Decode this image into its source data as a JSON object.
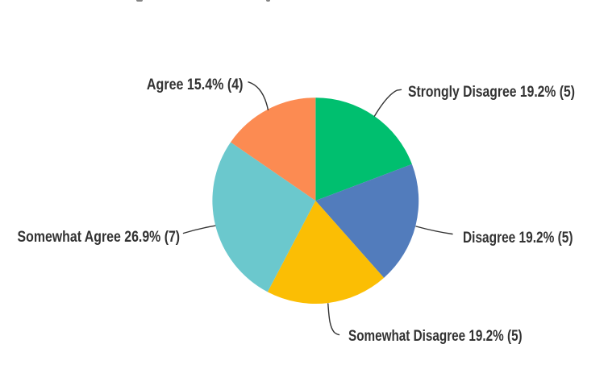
{
  "chart_data": {
    "type": "pie",
    "title": "",
    "total_responses": 26,
    "start_angle_deg": 0,
    "direction": "clockwise",
    "legend_position": "outside-labels-with-leader-lines",
    "label_color": "#333333",
    "leader_line_color": "#333333",
    "background_color": "#ffffff",
    "slices": [
      {
        "label": "Strongly Disagree",
        "percent": 19.2,
        "count": 5,
        "value": 5,
        "color": "#00bf6f",
        "label_text": "Strongly Disagree 19.2% (5)"
      },
      {
        "label": "Disagree",
        "percent": 19.2,
        "count": 5,
        "value": 5,
        "color": "#527cbc",
        "label_text": "Disagree 19.2% (5)"
      },
      {
        "label": "Somewhat Disagree",
        "percent": 19.2,
        "count": 5,
        "value": 5,
        "color": "#fbbe04",
        "label_text": "Somewhat Disagree 19.2% (5)"
      },
      {
        "label": "Somewhat Agree",
        "percent": 26.9,
        "count": 7,
        "value": 7,
        "color": "#6bc8cd",
        "label_text": "Somewhat Agree 26.9% (7)"
      },
      {
        "label": "Agree",
        "percent": 15.4,
        "count": 4,
        "value": 4,
        "color": "#fc8b52",
        "label_text": "Agree 15.4% (4)"
      }
    ]
  }
}
